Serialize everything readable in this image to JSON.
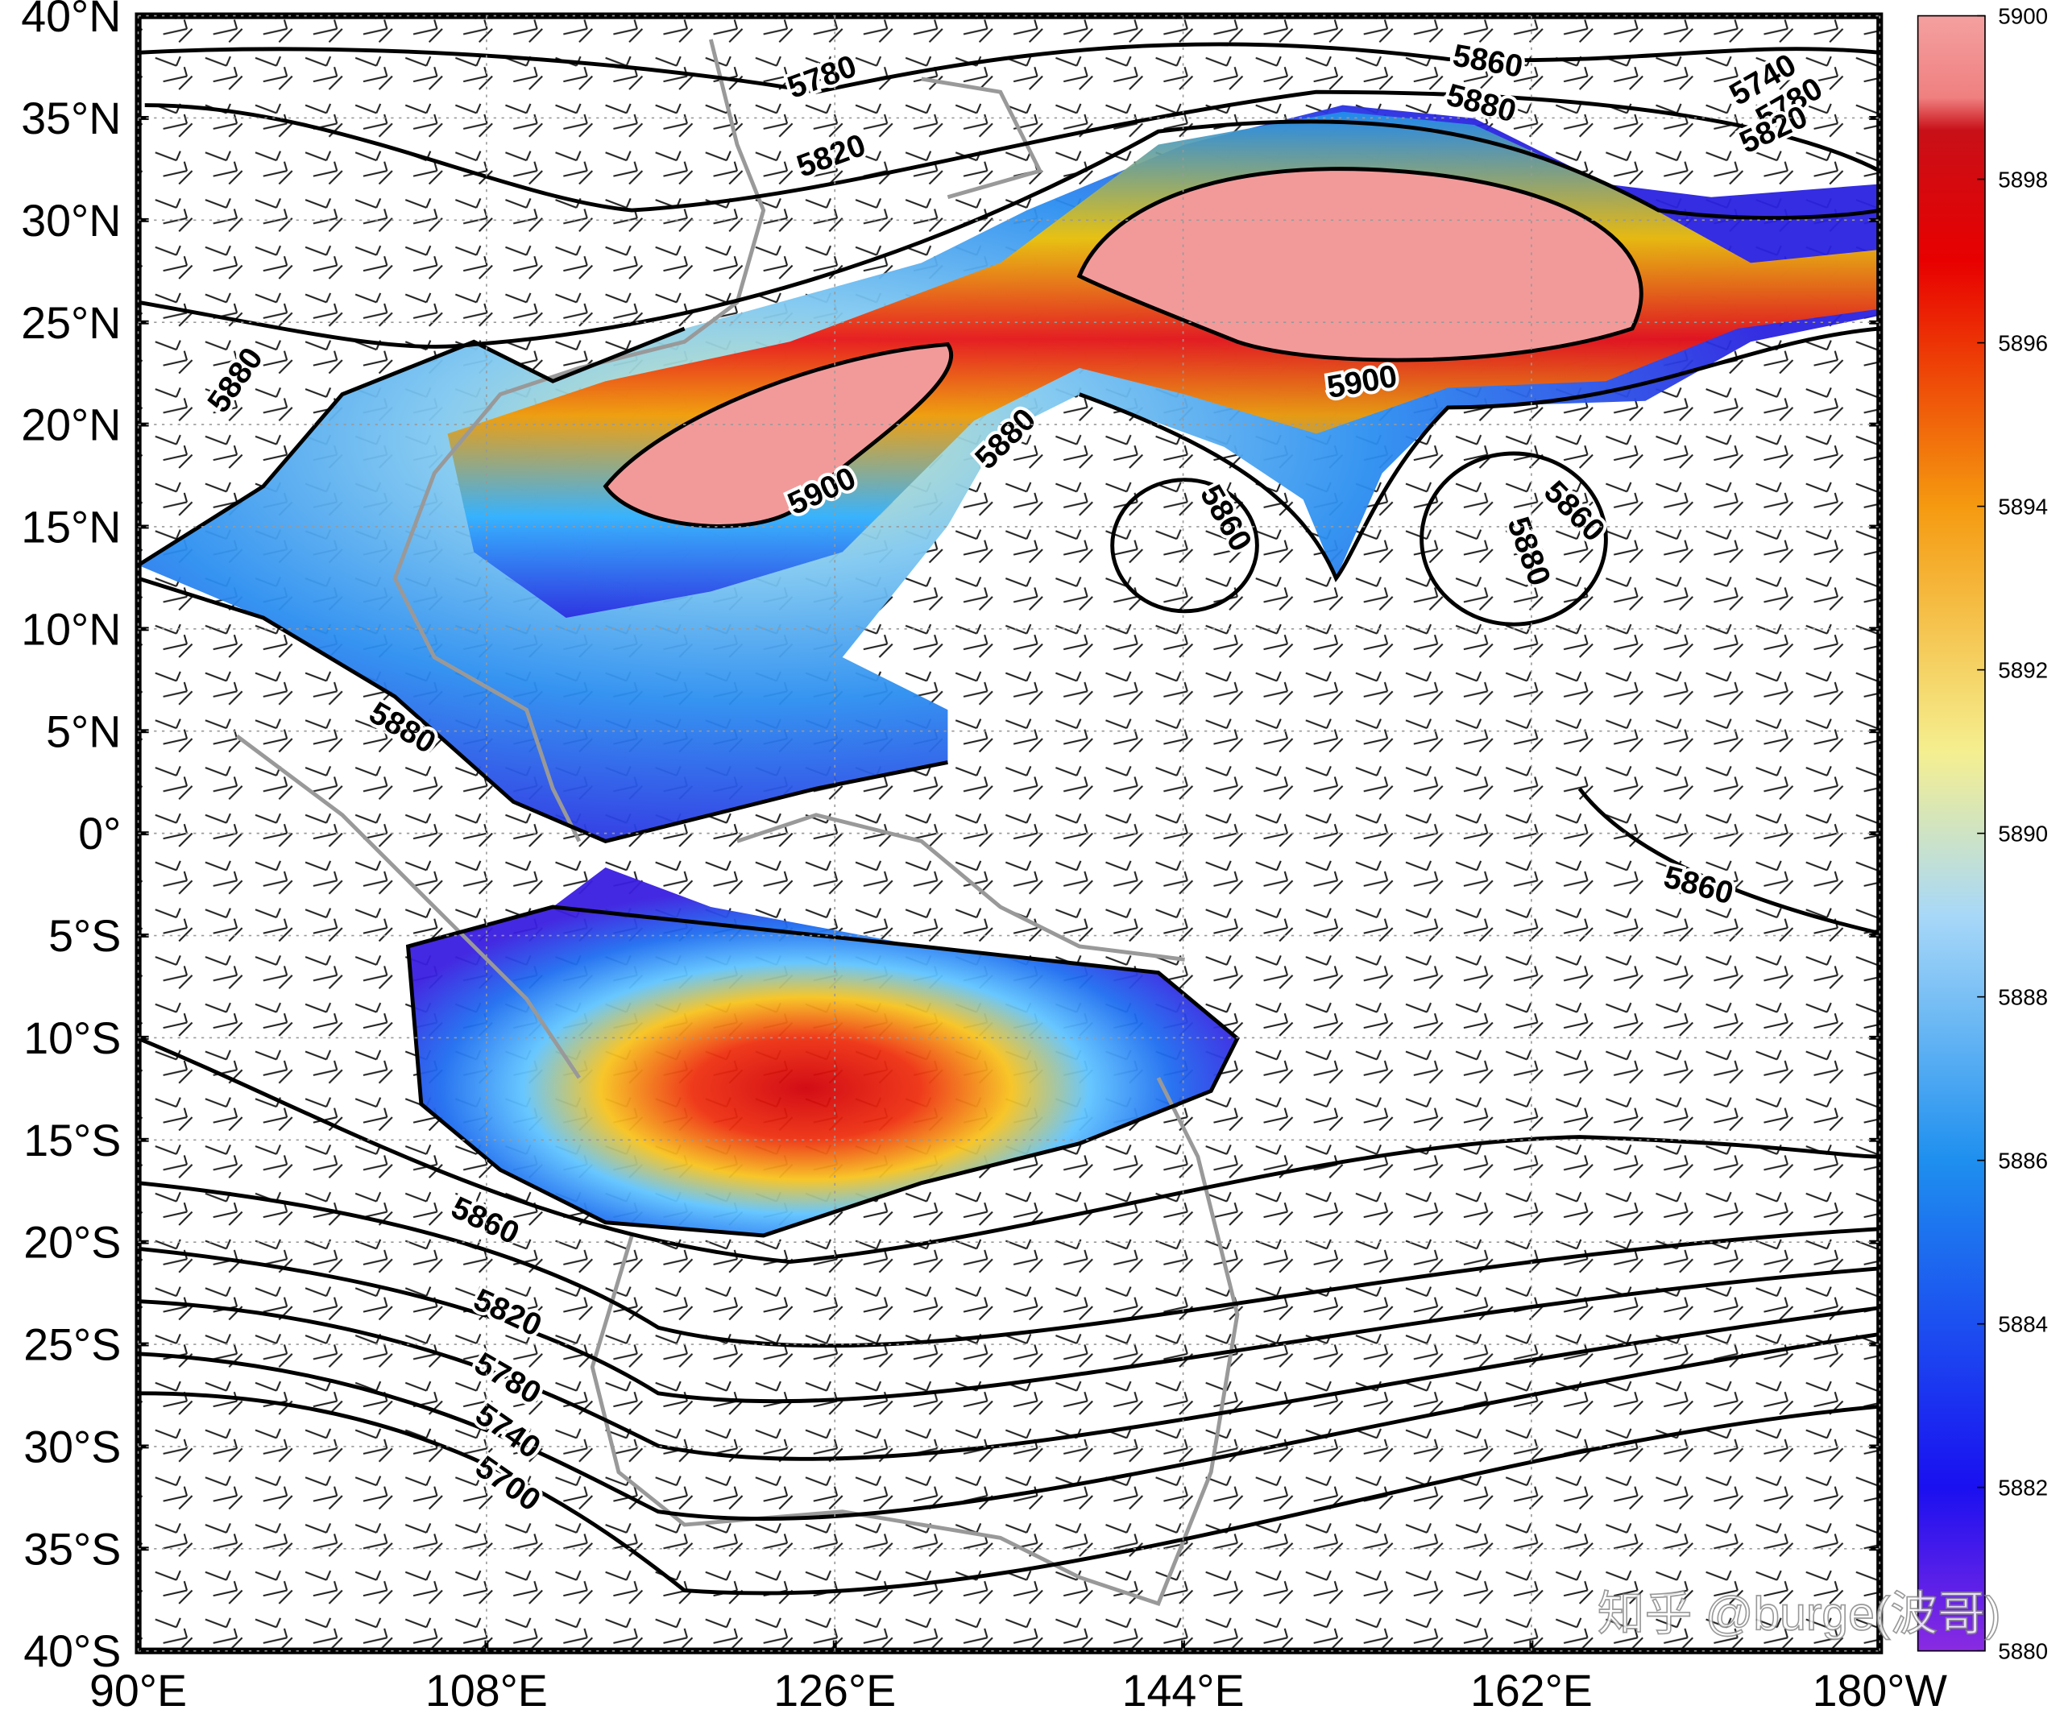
{
  "map": {
    "lat_labels": [
      "40°N",
      "35°N",
      "30°N",
      "25°N",
      "20°N",
      "15°N",
      "10°N",
      "5°N",
      "0°",
      "5°S",
      "10°S",
      "15°S",
      "20°S",
      "25°S",
      "30°S",
      "35°S",
      "40°S"
    ],
    "lon_labels": [
      "90°E",
      "108°E",
      "126°E",
      "144°E",
      "162°E",
      "180°W"
    ],
    "contour_labels": [
      "5780",
      "5820",
      "5860",
      "5880",
      "5740",
      "5780",
      "5820",
      "5880",
      "5900",
      "5900",
      "5880",
      "5860",
      "5860",
      "5880",
      "5880",
      "5860",
      "5860",
      "5820",
      "5780",
      "5740",
      "5700"
    ],
    "watermark": "知乎 @burge(波哥)"
  },
  "colorbar": {
    "lim": [
      5880,
      5900
    ],
    "ticks": [
      5880,
      5882,
      5884,
      5886,
      5888,
      5890,
      5892,
      5894,
      5896,
      5898,
      5900
    ]
  }
}
